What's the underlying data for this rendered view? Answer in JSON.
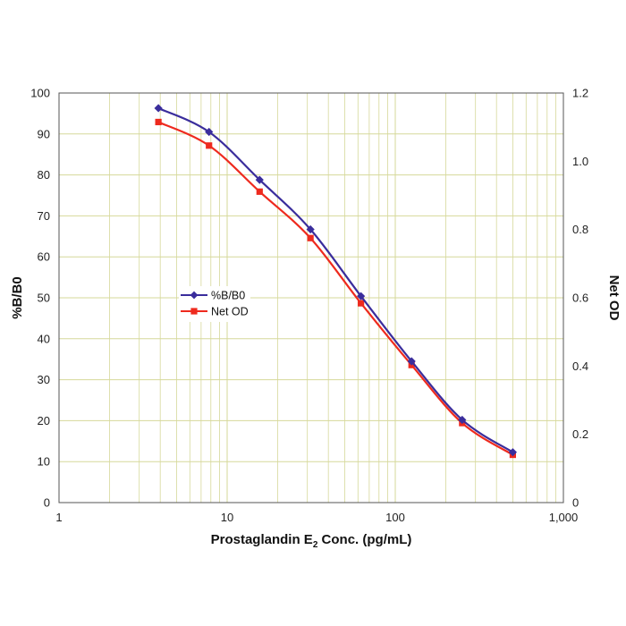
{
  "chart_data": {
    "type": "line",
    "x_scale": "log",
    "xlim": [
      1,
      1000
    ],
    "ylim_left": [
      0,
      100
    ],
    "ylim_right": [
      0,
      1.2
    ],
    "xlabel": {
      "prefix": "Prostaglandin E",
      "subscript": "2",
      "suffix": " Conc. (pg/mL)"
    },
    "ylabel_left": "%B/B0",
    "ylabel_right": "Net OD",
    "x_ticks": [
      1,
      10,
      100,
      1000
    ],
    "x_tick_labels": [
      "1",
      "10",
      "100",
      "1,000"
    ],
    "y_left_ticks": [
      0,
      10,
      20,
      30,
      40,
      50,
      60,
      70,
      80,
      90,
      100
    ],
    "y_left_tick_labels": [
      "0",
      "10",
      "20",
      "30",
      "40",
      "50",
      "60",
      "70",
      "80",
      "90",
      "100"
    ],
    "y_right_ticks": [
      0,
      0.2,
      0.4,
      0.6,
      0.8,
      1.0,
      1.2
    ],
    "y_right_tick_labels": [
      "0",
      "0.2",
      "0.4",
      "0.6",
      "0.8",
      "1.0",
      "1.2"
    ],
    "grid": true,
    "legend_position": "center-left",
    "series": [
      {
        "name": "%B/B0",
        "axis": "left",
        "color": "#3a2d9c",
        "marker": "diamond",
        "x": [
          3.9,
          7.8,
          15.6,
          31.3,
          62.5,
          125,
          250,
          500
        ],
        "y": [
          96.3,
          90.5,
          78.8,
          66.7,
          50.4,
          34.5,
          20.2,
          12.3
        ]
      },
      {
        "name": "Net OD",
        "axis": "right",
        "color": "#ee2a1e",
        "marker": "square",
        "x": [
          3.9,
          7.8,
          15.6,
          31.3,
          62.5,
          125,
          250,
          500
        ],
        "y": [
          1.115,
          1.046,
          0.911,
          0.775,
          0.584,
          0.403,
          0.233,
          0.14
        ]
      }
    ]
  }
}
